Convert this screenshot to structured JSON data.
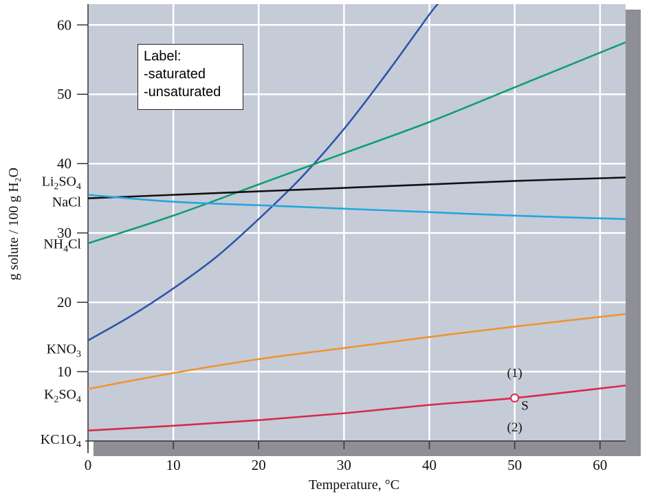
{
  "chart_data": {
    "type": "line",
    "title": "",
    "xlabel": "Temperature, °C",
    "ylabel": "g solute / 100 g H₂O",
    "xlim": [
      0,
      63
    ],
    "ylim": [
      0,
      63
    ],
    "grid": true,
    "x_ticks": [
      "0",
      "10",
      "20",
      "30",
      "40",
      "50",
      "60"
    ],
    "y_ticks": [
      "10",
      "20",
      "30",
      "40",
      "50",
      "60"
    ],
    "series": [
      {
        "name": "KNO₃",
        "color": "#2c56a8",
        "x": [
          0,
          5,
          10,
          15,
          20,
          25,
          30,
          35,
          40,
          41
        ],
        "y": [
          14.5,
          18,
          22,
          26.5,
          32,
          38,
          45,
          53,
          61.5,
          63
        ]
      },
      {
        "name": "NH₄Cl",
        "color": "#0e9e72",
        "x": [
          0,
          10,
          20,
          30,
          40,
          50,
          63
        ],
        "y": [
          28.5,
          32.5,
          37,
          41.5,
          46,
          51,
          57.5
        ]
      },
      {
        "name": "Li₂SO₄",
        "color": "#111111",
        "x": [
          0,
          10,
          20,
          30,
          40,
          50,
          63
        ],
        "y": [
          35,
          35.5,
          36,
          36.5,
          37,
          37.5,
          38
        ]
      },
      {
        "name": "NaCl",
        "color": "#23a6dd",
        "x": [
          0,
          10,
          20,
          30,
          40,
          50,
          63
        ],
        "y": [
          35.5,
          34.5,
          34,
          33.5,
          33,
          32.5,
          32
        ]
      },
      {
        "name": "K₂SO₄",
        "color": "#ee9433",
        "x": [
          0,
          10,
          20,
          30,
          40,
          50,
          63
        ],
        "y": [
          7.5,
          9.8,
          11.8,
          13.4,
          15,
          16.5,
          18.3
        ]
      },
      {
        "name": "KClO₄",
        "color": "#d72a4b",
        "x": [
          0,
          10,
          20,
          30,
          40,
          50,
          63
        ],
        "y": [
          1.5,
          2.2,
          3.0,
          4.0,
          5.2,
          6.2,
          8.0
        ]
      }
    ],
    "y_axis_labels": [
      {
        "base": "Li",
        "sub1": "2",
        "mid": "SO",
        "sub2": "4",
        "y": 37.5
      },
      {
        "base": "NaCl",
        "sub1": "",
        "mid": "",
        "sub2": "",
        "y": 34.5
      },
      {
        "base": "NH",
        "sub1": "4",
        "mid": "Cl",
        "sub2": "",
        "y": 28.5
      },
      {
        "base": "KNO",
        "sub1": "3",
        "mid": "",
        "sub2": "",
        "y": 13.3
      },
      {
        "base": "K",
        "sub1": "2",
        "mid": "SO",
        "sub2": "4",
        "y": 6.8
      },
      {
        "base": "KC1O",
        "sub1": "4",
        "mid": "",
        "sub2": "",
        "y": 0.3
      }
    ],
    "annotations": [
      {
        "text": "(1)",
        "x": 50,
        "y": 9.2
      },
      {
        "text": "S",
        "x": 51.2,
        "y": 4.5
      },
      {
        "text": "(2)",
        "x": 50,
        "y": 1.4
      }
    ],
    "point": {
      "label": "S",
      "x": 50,
      "y": 6.2
    }
  },
  "note": {
    "lines": [
      "Label:",
      "-saturated",
      "-unsaturated"
    ]
  }
}
